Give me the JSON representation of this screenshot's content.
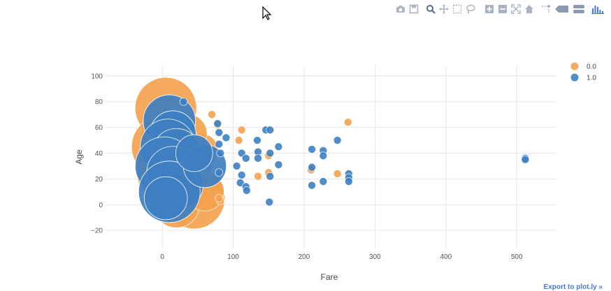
{
  "modebar": {
    "buttons": [
      {
        "name": "camera-icon",
        "x": 566
      },
      {
        "name": "save-icon",
        "x": 585
      },
      {
        "name": "zoom-icon",
        "x": 609
      },
      {
        "name": "pan-icon",
        "x": 628
      },
      {
        "name": "box-select-icon",
        "x": 647
      },
      {
        "name": "lasso-icon",
        "x": 666
      },
      {
        "name": "zoom-in-icon",
        "x": 693
      },
      {
        "name": "zoom-out-icon",
        "x": 712
      },
      {
        "name": "autoscale-icon",
        "x": 731
      },
      {
        "name": "home-icon",
        "x": 750
      },
      {
        "name": "spike-lines-icon",
        "x": 774
      },
      {
        "name": "hover-closest-icon",
        "x": 796
      },
      {
        "name": "hover-compare-icon",
        "x": 820
      },
      {
        "name": "plotly-logo-icon",
        "x": 848
      }
    ]
  },
  "export_link": "Export to plot.ly »",
  "chart_data": {
    "type": "scatter",
    "xlabel": "Fare",
    "ylabel": "Age",
    "xlim": [
      -80,
      555
    ],
    "ylim": [
      -34,
      108
    ],
    "xticks": [
      0,
      100,
      200,
      300,
      400,
      500
    ],
    "yticks": [
      -20,
      0,
      20,
      40,
      60,
      80,
      100
    ],
    "grid": true,
    "legend": {
      "placement": "top-right"
    },
    "series": [
      {
        "name": "0.0",
        "color": "#f4a24f",
        "points": [
          {
            "x": 5,
            "y": 75,
            "s": 40
          },
          {
            "x": 8,
            "y": 65,
            "s": 32
          },
          {
            "x": 10,
            "y": 55,
            "s": 36
          },
          {
            "x": 0,
            "y": 45,
            "s": 40
          },
          {
            "x": 18,
            "y": 35,
            "s": 34
          },
          {
            "x": 5,
            "y": 25,
            "s": 38
          },
          {
            "x": 40,
            "y": 30,
            "s": 28
          },
          {
            "x": 30,
            "y": 15,
            "s": 33
          },
          {
            "x": 45,
            "y": 5,
            "s": 40
          },
          {
            "x": 20,
            "y": 0,
            "s": 30
          },
          {
            "x": 60,
            "y": 10,
            "s": 25
          },
          {
            "x": 55,
            "y": 42,
            "s": 22
          },
          {
            "x": 35,
            "y": 55,
            "s": 26
          },
          {
            "x": 70,
            "y": 70,
            "s": 5
          },
          {
            "x": 78,
            "y": 62,
            "s": 5
          },
          {
            "x": 108,
            "y": 50,
            "s": 5
          },
          {
            "x": 112,
            "y": 58,
            "s": 5
          },
          {
            "x": 150,
            "y": 38,
            "s": 5
          },
          {
            "x": 150,
            "y": 25,
            "s": 5
          },
          {
            "x": 135,
            "y": 22,
            "s": 5
          },
          {
            "x": 210,
            "y": 27,
            "s": 5
          },
          {
            "x": 247,
            "y": 24,
            "s": 5
          },
          {
            "x": 262,
            "y": 64,
            "s": 5
          },
          {
            "x": 82,
            "y": 3,
            "s": 5
          },
          {
            "x": 80,
            "y": 5,
            "s": 5
          }
        ]
      },
      {
        "name": "1.0",
        "color": "#3d7fc1",
        "points": [
          {
            "x": 10,
            "y": 65,
            "s": 34
          },
          {
            "x": 15,
            "y": 55,
            "s": 30
          },
          {
            "x": 8,
            "y": 45,
            "s": 36
          },
          {
            "x": 20,
            "y": 40,
            "s": 32
          },
          {
            "x": 3,
            "y": 30,
            "s": 38
          },
          {
            "x": 15,
            "y": 25,
            "s": 34
          },
          {
            "x": 25,
            "y": 15,
            "s": 30
          },
          {
            "x": 10,
            "y": 10,
            "s": 40
          },
          {
            "x": 5,
            "y": 5,
            "s": 28
          },
          {
            "x": 60,
            "y": 30,
            "s": 28
          },
          {
            "x": 45,
            "y": 40,
            "s": 24
          },
          {
            "x": 30,
            "y": 80,
            "s": 5
          },
          {
            "x": 78,
            "y": 63,
            "s": 5
          },
          {
            "x": 80,
            "y": 56,
            "s": 5
          },
          {
            "x": 90,
            "y": 52,
            "s": 5
          },
          {
            "x": 80,
            "y": 47,
            "s": 5
          },
          {
            "x": 82,
            "y": 40,
            "s": 5
          },
          {
            "x": 80,
            "y": 25,
            "s": 5
          },
          {
            "x": 112,
            "y": 40,
            "s": 5
          },
          {
            "x": 105,
            "y": 30,
            "s": 5
          },
          {
            "x": 112,
            "y": 23,
            "s": 5
          },
          {
            "x": 110,
            "y": 17,
            "s": 5
          },
          {
            "x": 118,
            "y": 36,
            "s": 5
          },
          {
            "x": 118,
            "y": 14,
            "s": 5
          },
          {
            "x": 119,
            "y": 11,
            "s": 5
          },
          {
            "x": 134,
            "y": 50,
            "s": 5
          },
          {
            "x": 135,
            "y": 41,
            "s": 5
          },
          {
            "x": 135,
            "y": 36,
            "s": 5
          },
          {
            "x": 146,
            "y": 58,
            "s": 5
          },
          {
            "x": 152,
            "y": 58,
            "s": 5
          },
          {
            "x": 152,
            "y": 40,
            "s": 5
          },
          {
            "x": 152,
            "y": 22,
            "s": 5
          },
          {
            "x": 151,
            "y": 2,
            "s": 5
          },
          {
            "x": 164,
            "y": 45,
            "s": 5
          },
          {
            "x": 164,
            "y": 31,
            "s": 5
          },
          {
            "x": 211,
            "y": 43,
            "s": 5
          },
          {
            "x": 211,
            "y": 29,
            "s": 5
          },
          {
            "x": 211,
            "y": 15,
            "s": 5
          },
          {
            "x": 227,
            "y": 42,
            "s": 5
          },
          {
            "x": 227,
            "y": 38,
            "s": 5
          },
          {
            "x": 227,
            "y": 18,
            "s": 5
          },
          {
            "x": 247,
            "y": 50,
            "s": 5
          },
          {
            "x": 263,
            "y": 24,
            "s": 5
          },
          {
            "x": 263,
            "y": 21,
            "s": 5
          },
          {
            "x": 263,
            "y": 18,
            "s": 5
          },
          {
            "x": 512,
            "y": 36,
            "s": 5
          },
          {
            "x": 512,
            "y": 35,
            "s": 5
          }
        ]
      }
    ]
  }
}
